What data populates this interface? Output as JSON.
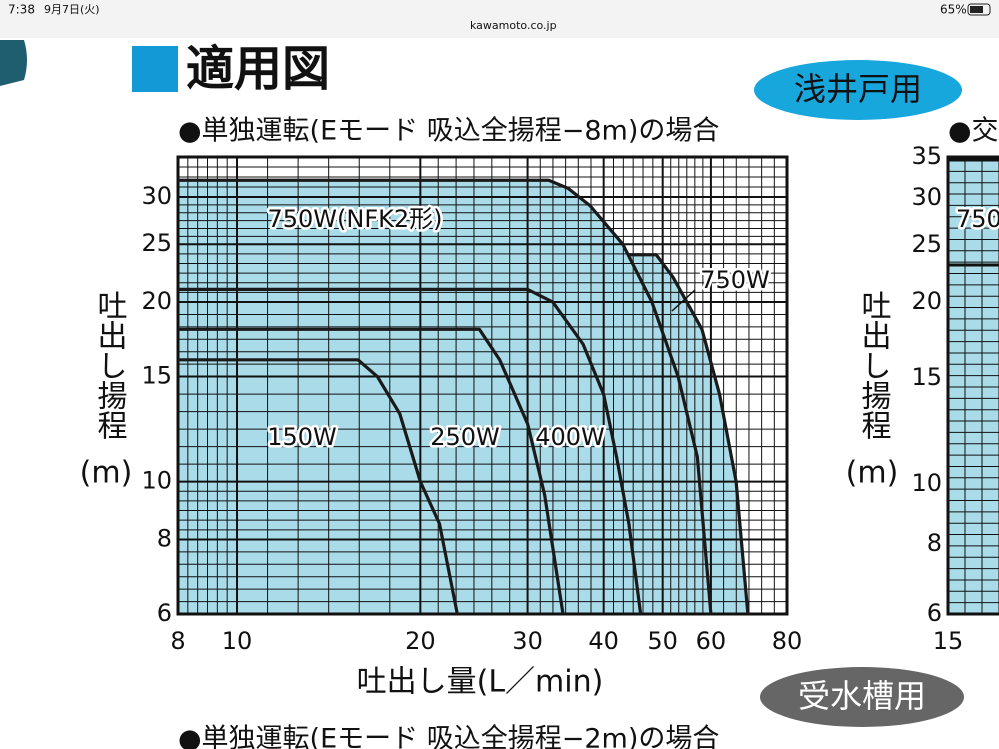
{
  "status_bar": {
    "time": "7:38",
    "date": "9月7日(火)",
    "url": "kawamoto.co.jp",
    "battery": "65%"
  },
  "header": {
    "title": "適用図",
    "badge_top": "浅井戸用",
    "badge_bottom": "受水槽用",
    "next_section": "●単独運転(Eモード 吸込全揚程−2m)の場合"
  },
  "chart_data": {
    "type": "line",
    "title": "●単独運転(Eモード 吸込全揚程−8m)の場合",
    "x_label": "吐出し量(L／min)",
    "y_label": "吐出し揚程",
    "y_unit": "(m)",
    "xscale": "log",
    "yscale": "log",
    "grid": true,
    "fill_color": "#a9dbe8",
    "xlim": [
      8,
      80
    ],
    "xticks": [
      8,
      10,
      20,
      30,
      40,
      50,
      60,
      80
    ],
    "ylim": [
      6,
      35
    ],
    "yticks": [
      6,
      8,
      10,
      15,
      20,
      25,
      30
    ],
    "series": [
      {
        "name": "750W(NFK2形)",
        "color": "#1a1a1a",
        "x": [
          8,
          32.5,
          35,
          38,
          43,
          48,
          53,
          57,
          60
        ],
        "values": [
          32,
          32,
          31,
          29,
          25,
          20,
          15,
          11,
          6
        ]
      },
      {
        "name": "750W",
        "color": "#1a1a1a",
        "x": [
          44,
          48.8,
          52,
          58,
          62,
          66,
          69
        ],
        "values": [
          24,
          24,
          22,
          18,
          14,
          10,
          6
        ]
      },
      {
        "name": "400W",
        "color": "#1a1a1a",
        "x": [
          8,
          30,
          33,
          37,
          40,
          42,
          44,
          46
        ],
        "values": [
          21,
          21,
          20,
          17,
          14,
          11,
          8.5,
          6
        ]
      },
      {
        "name": "250W",
        "color": "#1a1a1a",
        "x": [
          8,
          25,
          27,
          30,
          32,
          34.3
        ],
        "values": [
          18,
          18,
          16,
          12.5,
          9.5,
          6
        ]
      },
      {
        "name": "150W",
        "color": "#1a1a1a",
        "x": [
          8,
          15.8,
          17,
          18.5,
          20,
          21.5,
          23
        ],
        "values": [
          16,
          16,
          15,
          13,
          10,
          8.5,
          6
        ]
      }
    ]
  },
  "side_chart": {
    "title": "●交",
    "yticks": [
      "35",
      "30",
      "25",
      "20",
      "15",
      "10",
      "8",
      "6"
    ],
    "xtick": "15",
    "label": "750",
    "y_label": "吐出し揚程",
    "y_unit": "(m)"
  }
}
